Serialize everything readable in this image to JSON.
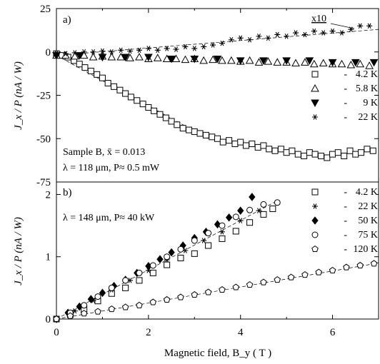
{
  "chart_data": [
    {
      "panel": "a)",
      "type": "scatter",
      "title": "",
      "xlabel": "Magnetic field, B_y ( T )",
      "ylabel": "J_x / P (nA / W)",
      "xlim": [
        0,
        7
      ],
      "ylim": [
        -75,
        25
      ],
      "yticks": [
        25,
        0,
        -25,
        -50,
        -75
      ],
      "annotation": [
        "Sample B, x̄ = 0.013",
        "λ = 118 μm, P≈ 0.5 mW"
      ],
      "scale_note": "x10",
      "legend_position": "right",
      "series": [
        {
          "name": "4.2 K",
          "marker": "open-square",
          "x": [
            0.0,
            0.12,
            0.25,
            0.38,
            0.5,
            0.62,
            0.75,
            0.88,
            1.0,
            1.12,
            1.25,
            1.38,
            1.5,
            1.62,
            1.75,
            1.88,
            2.0,
            2.12,
            2.25,
            2.38,
            2.5,
            2.62,
            2.75,
            2.88,
            3.0,
            3.12,
            3.25,
            3.38,
            3.5,
            3.62,
            3.75,
            3.88,
            4.0,
            4.12,
            4.25,
            4.38,
            4.5,
            4.62,
            4.75,
            4.88,
            5.0,
            5.12,
            5.25,
            5.38,
            5.5,
            5.62,
            5.75,
            5.88,
            6.0,
            6.12,
            6.25,
            6.38,
            6.5,
            6.62,
            6.75,
            6.88
          ],
          "y": [
            -1,
            -2,
            -3,
            -5,
            -7,
            -9,
            -11,
            -13,
            -15,
            -18,
            -20,
            -22,
            -24,
            -26,
            -28,
            -30,
            -32,
            -34,
            -36,
            -38,
            -40,
            -42,
            -44,
            -45,
            -46,
            -47,
            -48,
            -49,
            -50,
            -52,
            -51,
            -53,
            -52,
            -54,
            -53,
            -55,
            -54,
            -56,
            -57,
            -56,
            -58,
            -57,
            -59,
            -60,
            -58,
            -59,
            -60,
            -61,
            -59,
            -58,
            -60,
            -57,
            -59,
            -58,
            -56,
            -57
          ]
        },
        {
          "name": "5.8 K",
          "marker": "open-triangle",
          "x": [
            0.0,
            0.2,
            0.4,
            0.6,
            0.8,
            1.0,
            1.2,
            1.4,
            1.6,
            1.8,
            2.0,
            2.2,
            2.4,
            2.6,
            2.8,
            3.0,
            3.2,
            3.4,
            3.6,
            3.8,
            4.0,
            4.2,
            4.4,
            4.6,
            4.8,
            5.0,
            5.2,
            5.4,
            5.6,
            5.8,
            6.0,
            6.2,
            6.4,
            6.6,
            6.8
          ],
          "y": [
            -2,
            -2,
            -2.5,
            -2,
            -3,
            -2.5,
            -3,
            -3,
            -3.5,
            -3,
            -4,
            -3.5,
            -4,
            -4,
            -4.5,
            -4,
            -5,
            -4.5,
            -5,
            -5,
            -5.5,
            -5,
            -6,
            -5.5,
            -6,
            -6,
            -6.5,
            -6,
            -7,
            -6.5,
            -7,
            -7,
            -7.5,
            -7,
            -8
          ]
        },
        {
          "name": "9 K",
          "marker": "filled-down-triangle",
          "x": [
            0.0,
            0.5,
            1.0,
            1.5,
            2.0,
            2.5,
            3.0,
            3.5,
            4.0,
            4.5,
            5.0,
            5.5,
            6.0,
            6.5,
            6.9
          ],
          "y": [
            -2,
            -2,
            -3,
            -3,
            -3,
            -4,
            -4,
            -4,
            -5,
            -5,
            -5,
            -5,
            -6,
            -6,
            -6
          ]
        },
        {
          "name": "22 K",
          "marker": "asterisk",
          "x": [
            0.0,
            0.2,
            0.4,
            0.6,
            0.8,
            1.0,
            1.2,
            1.4,
            1.6,
            1.8,
            2.0,
            2.2,
            2.4,
            2.6,
            2.8,
            3.0,
            3.2,
            3.4,
            3.6,
            3.8,
            4.0,
            4.2,
            4.4,
            4.6,
            4.8,
            5.0,
            5.2,
            5.4,
            5.6,
            5.8,
            6.0,
            6.2,
            6.4,
            6.6,
            6.8
          ],
          "y": [
            -1,
            -1,
            -0.5,
            0,
            0,
            0.5,
            0,
            1,
            0.5,
            1,
            2,
            1,
            2,
            1.5,
            3,
            2,
            3,
            4,
            5,
            7,
            8,
            7,
            9,
            8,
            10,
            9,
            11,
            10,
            12,
            11,
            12,
            11,
            13,
            15,
            15
          ]
        }
      ],
      "guide_lines": [
        {
          "x": [
            0,
            3.3
          ],
          "y": [
            -2,
            -50
          ]
        },
        {
          "x": [
            0,
            7.0
          ],
          "y": [
            -2,
            13
          ]
        }
      ]
    },
    {
      "panel": "b)",
      "type": "scatter",
      "title": "",
      "xlabel": "Magnetic field, B_y ( T )",
      "ylabel": "J_x / P (nA / W)",
      "xlim": [
        0,
        7
      ],
      "ylim": [
        0,
        2.2
      ],
      "xticks": [
        0,
        2,
        4,
        6
      ],
      "yticks": [
        0,
        1,
        2
      ],
      "annotation": [
        "λ = 148 μm, P≈ 40 kW"
      ],
      "legend_position": "top-right",
      "series": [
        {
          "name": "4.2 K",
          "marker": "open-square",
          "x": [
            0.0,
            0.3,
            0.6,
            0.9,
            1.2,
            1.5,
            1.8,
            2.1,
            2.4,
            2.7,
            3.0,
            3.3,
            3.6,
            3.9,
            4.2,
            4.5,
            4.7
          ],
          "y": [
            0,
            0.07,
            0.16,
            0.29,
            0.41,
            0.5,
            0.62,
            0.74,
            0.87,
            0.98,
            1.05,
            1.18,
            1.29,
            1.41,
            1.55,
            1.68,
            1.77
          ]
        },
        {
          "name": "22 K",
          "marker": "asterisk",
          "x": [
            0.0,
            0.4,
            0.8,
            1.2,
            1.6,
            2.0,
            2.4,
            2.8,
            3.2,
            3.6,
            4.0,
            4.4
          ],
          "y": [
            0,
            0.13,
            0.3,
            0.47,
            0.62,
            0.78,
            0.95,
            1.1,
            1.26,
            1.4,
            1.58,
            1.74
          ]
        },
        {
          "name": "50 K",
          "marker": "filled-diamond",
          "x": [
            0.0,
            0.25,
            0.5,
            0.75,
            1.0,
            1.25,
            1.5,
            1.75,
            2.0,
            2.25,
            2.5,
            2.75,
            3.0,
            3.25,
            3.5,
            3.75,
            4.0,
            4.25
          ],
          "y": [
            0,
            0.1,
            0.2,
            0.32,
            0.42,
            0.53,
            0.63,
            0.74,
            0.85,
            0.96,
            1.07,
            1.18,
            1.3,
            1.4,
            1.52,
            1.63,
            1.74,
            1.96
          ]
        },
        {
          "name": "75 K",
          "marker": "open-circle",
          "x": [
            0.0,
            0.3,
            0.6,
            0.9,
            1.2,
            1.5,
            1.8,
            2.1,
            2.4,
            2.7,
            3.0,
            3.3,
            3.6,
            3.9,
            4.2,
            4.5,
            4.8
          ],
          "y": [
            0,
            0.1,
            0.22,
            0.36,
            0.5,
            0.62,
            0.74,
            0.86,
            1.0,
            1.12,
            1.26,
            1.38,
            1.5,
            1.64,
            1.75,
            1.84,
            1.87
          ]
        },
        {
          "name": "120 K",
          "marker": "open-pentagon",
          "x": [
            0.0,
            0.3,
            0.6,
            0.9,
            1.2,
            1.5,
            1.8,
            2.1,
            2.4,
            2.7,
            3.0,
            3.3,
            3.6,
            3.9,
            4.2,
            4.5,
            4.8,
            5.1,
            5.4,
            5.7,
            6.0,
            6.3,
            6.6,
            6.9
          ],
          "y": [
            0,
            0.05,
            0.09,
            0.12,
            0.16,
            0.19,
            0.22,
            0.27,
            0.31,
            0.35,
            0.39,
            0.43,
            0.47,
            0.51,
            0.55,
            0.59,
            0.63,
            0.67,
            0.71,
            0.75,
            0.78,
            0.83,
            0.86,
            0.89
          ]
        }
      ],
      "guide_lines": [
        {
          "x": [
            0,
            4.8
          ],
          "y": [
            0,
            1.9
          ]
        },
        {
          "x": [
            0,
            7.0
          ],
          "y": [
            0,
            0.9
          ]
        }
      ]
    }
  ]
}
